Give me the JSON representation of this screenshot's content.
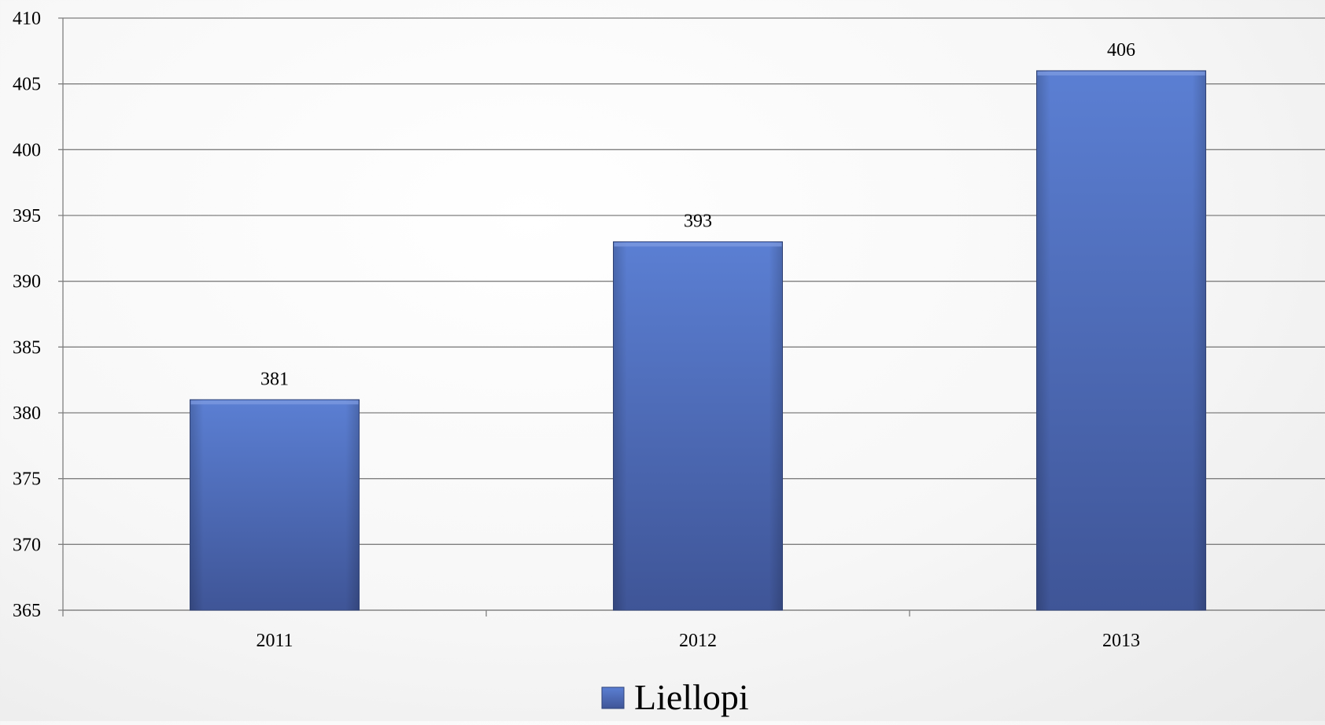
{
  "chart_data": {
    "type": "bar",
    "categories": [
      "2011",
      "2012",
      "2013"
    ],
    "series": [
      {
        "name": "Liellopi",
        "values": [
          381,
          393,
          406
        ],
        "color": "#4a68b4"
      }
    ],
    "ylim": [
      365,
      410
    ],
    "yticks": [
      365,
      370,
      375,
      380,
      385,
      390,
      395,
      400,
      405,
      410
    ],
    "data_labels": true,
    "grid": true,
    "legend_position": "bottom",
    "title": "",
    "xlabel": "",
    "ylabel": ""
  }
}
